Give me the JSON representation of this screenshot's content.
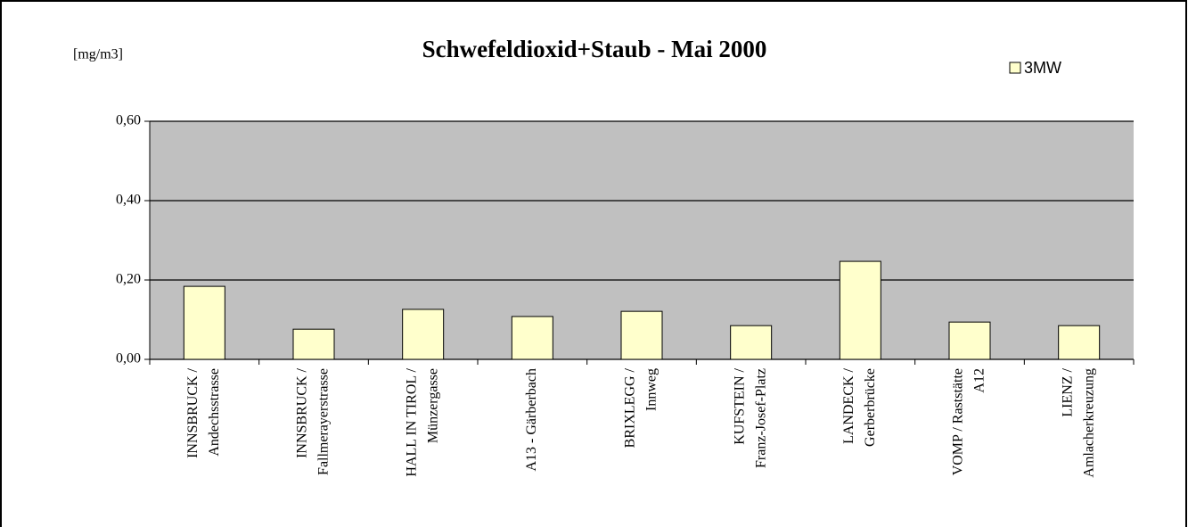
{
  "chart_data": {
    "type": "bar",
    "title": "Schwefeldioxid+Staub - Mai 2000",
    "y_label": "[mg/m3]",
    "categories": [
      [
        "INNSBRUCK /",
        "Andechsstrasse"
      ],
      [
        "INNSBRUCK /",
        "Fallmerayerstrasse"
      ],
      [
        "HALL IN TIROL /",
        "Münzergasse"
      ],
      [
        "A13  - Gärberbach"
      ],
      [
        "BRIXLEGG /",
        "Innweg"
      ],
      [
        "KUFSTEIN /",
        "Franz-Josef-Platz"
      ],
      [
        "LANDECK /",
        "Gerberbrücke"
      ],
      [
        "VOMP / Raststätte",
        "A12"
      ],
      [
        "LIENZ /",
        "Amlacherkreuzung"
      ]
    ],
    "series": [
      {
        "name": "3MW",
        "color": "#ffffcc",
        "values": [
          0.184,
          0.076,
          0.126,
          0.108,
          0.121,
          0.085,
          0.247,
          0.094,
          0.085
        ]
      }
    ],
    "ylim": [
      0,
      0.6
    ],
    "yticks": [
      {
        "value": 0,
        "label": "0,00"
      },
      {
        "value": 0.2,
        "label": "0,20"
      },
      {
        "value": 0.4,
        "label": "0,40"
      },
      {
        "value": 0.6,
        "label": "0,60"
      }
    ],
    "grid": true,
    "plot_background": "#c0c0c0",
    "legend_position": "top-right"
  }
}
